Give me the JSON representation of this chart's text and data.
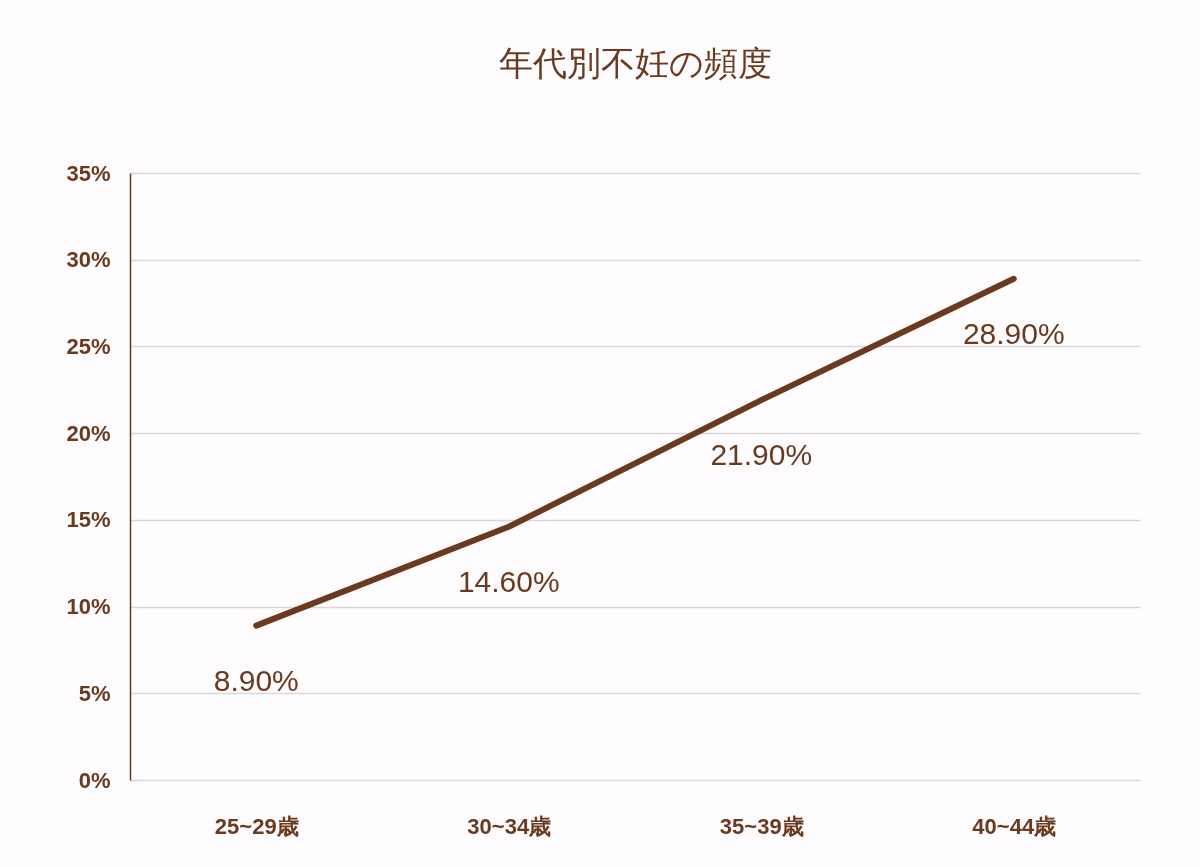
{
  "chart_data": {
    "type": "line",
    "title": "年代別不妊の頻度",
    "categories": [
      "25~29歳",
      "30~34歳",
      "35~39歳",
      "40~44歳"
    ],
    "values": [
      8.9,
      14.6,
      21.9,
      28.9
    ],
    "color": "#6b3a1e",
    "value_labels": [
      "8.90%",
      "14.60%",
      "21.90%",
      "28.90%"
    ],
    "ylim": [
      0,
      35
    ],
    "yticks": [
      {
        "value": 0,
        "label": "0%"
      },
      {
        "value": 5,
        "label": "5%"
      },
      {
        "value": 10,
        "label": "10%"
      },
      {
        "value": 15,
        "label": "15%"
      },
      {
        "value": 20,
        "label": "20%"
      },
      {
        "value": 25,
        "label": "25%"
      },
      {
        "value": 30,
        "label": "30%"
      },
      {
        "value": 35,
        "label": "35%"
      }
    ],
    "grid": "y",
    "line_style": "solid"
  }
}
